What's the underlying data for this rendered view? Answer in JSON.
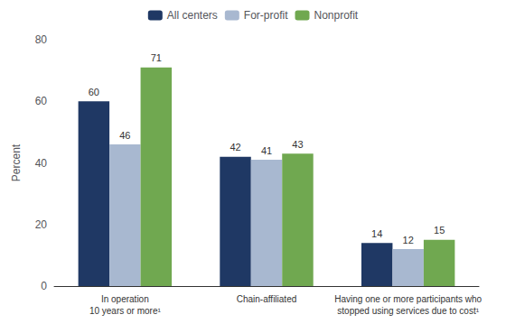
{
  "chart_data": {
    "type": "bar",
    "categories": [
      "In operation\n10 years or more¹",
      "Chain-affiliated",
      "Having one or more participants who\nstopped using services due to cost¹"
    ],
    "series": [
      {
        "name": "All centers",
        "color": "#1f3864",
        "values": [
          60,
          42,
          14
        ]
      },
      {
        "name": "For-profit",
        "color": "#a8b8d0",
        "values": [
          46,
          41,
          12
        ]
      },
      {
        "name": "Nonprofit",
        "color": "#70a850",
        "values": [
          71,
          43,
          15
        ]
      }
    ],
    "ylabel": "Percent",
    "ylim": [
      0,
      80
    ],
    "yticks": [
      0,
      20,
      40,
      60,
      80
    ],
    "grid": false,
    "legend": "top",
    "data_labels": true
  }
}
